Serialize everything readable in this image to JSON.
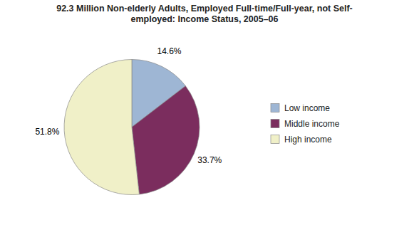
{
  "chart_data": {
    "type": "pie",
    "title": "92.3 Million Non-elderly Adults, Employed Full-time/Full-year, not Self-\nemployed: Income Status, 2005–06",
    "categories": [
      "Low income",
      "Middle income",
      "High income"
    ],
    "values": [
      14.6,
      33.7,
      51.8
    ],
    "value_labels": [
      "14.6%",
      "33.7%",
      "51.8%"
    ],
    "colors": [
      "#9eb6d4",
      "#7b2d5e",
      "#f0f0c8"
    ],
    "data_labels": true,
    "legend": "right"
  }
}
